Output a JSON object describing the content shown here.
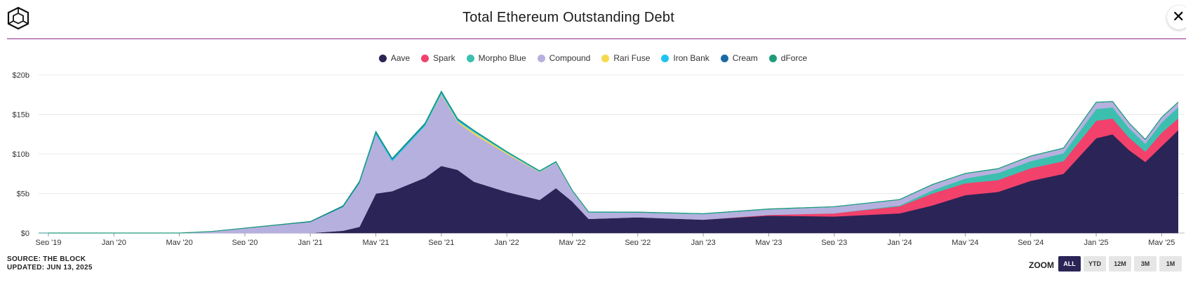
{
  "header": {
    "title": "Total Ethereum Outstanding Debt",
    "logo_icon": "the-block-cube-logo",
    "close_icon": "close-icon",
    "close_label": "✕"
  },
  "legend": [
    {
      "name": "Aave",
      "color": "#2b2456"
    },
    {
      "name": "Spark",
      "color": "#f2416b"
    },
    {
      "name": "Morpho Blue",
      "color": "#3dbfb0"
    },
    {
      "name": "Compound",
      "color": "#b6b0df"
    },
    {
      "name": "Rari Fuse",
      "color": "#f5d94a"
    },
    {
      "name": "Iron Bank",
      "color": "#1fc4ef"
    },
    {
      "name": "Cream",
      "color": "#1b6aa6"
    },
    {
      "name": "dForce",
      "color": "#1f9a7a"
    }
  ],
  "footer": {
    "source": "SOURCE: THE BLOCK",
    "updated": "UPDATED: JUN 13, 2025"
  },
  "zoom": {
    "label": "ZOOM",
    "buttons": [
      "ALL",
      "YTD",
      "12M",
      "3M",
      "1M"
    ],
    "active": "ALL"
  },
  "chart_data": {
    "type": "area",
    "stacked": true,
    "title": "Total Ethereum Outstanding Debt",
    "x_axis": {
      "type": "date",
      "range": [
        "2019-08",
        "2025-06"
      ],
      "ticks": [
        "Sep '19",
        "Jan '20",
        "May '20",
        "Sep '20",
        "Jan '21",
        "May '21",
        "Sep '21",
        "Jan '22",
        "May '22",
        "Sep '22",
        "Jan '23",
        "May '23",
        "Sep '23",
        "Jan '24",
        "May '24",
        "Sep '24",
        "Jan '25",
        "May '25"
      ]
    },
    "y_axis": {
      "unit": "USD",
      "range": [
        0,
        20
      ],
      "ticks": [
        "$0",
        "$5b",
        "$10b",
        "$15b",
        "$20b"
      ],
      "grid": true
    },
    "legend_position": "top-center",
    "x": [
      "2019-09",
      "2020-01",
      "2020-05",
      "2020-07",
      "2020-09",
      "2021-01",
      "2021-03",
      "2021-04",
      "2021-05",
      "2021-06",
      "2021-08",
      "2021-09",
      "2021-10",
      "2021-11",
      "2022-01",
      "2022-03",
      "2022-04",
      "2022-05",
      "2022-06",
      "2022-09",
      "2023-01",
      "2023-05",
      "2023-09",
      "2024-01",
      "2024-03",
      "2024-05",
      "2024-07",
      "2024-09",
      "2024-11",
      "2025-01",
      "2025-02",
      "2025-03",
      "2025-04",
      "2025-05",
      "2025-06"
    ],
    "series": [
      {
        "name": "Aave",
        "values": [
          0,
          0,
          0,
          0,
          0,
          0,
          0.3,
          0.8,
          5.0,
          5.3,
          7.0,
          8.5,
          8.0,
          6.5,
          5.2,
          4.2,
          5.7,
          4.0,
          1.8,
          2.0,
          1.7,
          2.2,
          2.1,
          2.5,
          3.5,
          4.8,
          5.2,
          6.6,
          7.5,
          12.0,
          12.5,
          10.5,
          9.0,
          11.0,
          13.0
        ]
      },
      {
        "name": "Spark",
        "values": [
          0,
          0,
          0,
          0,
          0,
          0,
          0,
          0,
          0,
          0,
          0,
          0,
          0,
          0,
          0,
          0,
          0,
          0,
          0,
          0,
          0,
          0.1,
          0.4,
          0.9,
          1.5,
          1.5,
          1.5,
          1.6,
          1.6,
          2.2,
          2.0,
          1.6,
          1.3,
          1.7,
          1.5
        ]
      },
      {
        "name": "Morpho Blue",
        "values": [
          0,
          0,
          0,
          0,
          0,
          0,
          0,
          0,
          0,
          0,
          0,
          0,
          0,
          0,
          0,
          0,
          0,
          0,
          0,
          0,
          0,
          0,
          0,
          0.1,
          0.4,
          0.6,
          0.9,
          0.9,
          1.0,
          1.5,
          1.4,
          1.2,
          1.0,
          1.3,
          1.4
        ]
      },
      {
        "name": "Compound",
        "values": [
          0,
          0,
          0,
          0.2,
          0.6,
          1.4,
          3.0,
          5.5,
          7.5,
          3.8,
          6.5,
          9.0,
          6.0,
          6.0,
          4.8,
          3.5,
          3.2,
          1.3,
          0.8,
          0.6,
          0.7,
          0.7,
          0.8,
          0.7,
          0.7,
          0.6,
          0.5,
          0.6,
          0.6,
          0.8,
          0.7,
          0.6,
          0.5,
          0.6,
          0.6
        ]
      },
      {
        "name": "Rari Fuse",
        "values": [
          0,
          0,
          0,
          0,
          0,
          0,
          0,
          0,
          0,
          0,
          0.05,
          0.1,
          0.15,
          0.25,
          0.15,
          0.05,
          0.03,
          0.02,
          0,
          0,
          0,
          0,
          0,
          0,
          0,
          0,
          0,
          0,
          0,
          0,
          0,
          0,
          0,
          0,
          0
        ]
      },
      {
        "name": "Iron Bank",
        "values": [
          0,
          0,
          0,
          0,
          0,
          0,
          0.05,
          0.1,
          0.2,
          0.2,
          0.2,
          0.2,
          0.2,
          0.15,
          0.1,
          0.08,
          0.07,
          0.05,
          0.04,
          0.03,
          0.03,
          0.02,
          0.02,
          0.02,
          0.02,
          0.02,
          0.02,
          0.02,
          0.02,
          0.02,
          0.02,
          0.02,
          0.02,
          0.02,
          0.02
        ]
      },
      {
        "name": "Cream",
        "values": [
          0,
          0,
          0,
          0,
          0.02,
          0.05,
          0.08,
          0.1,
          0.12,
          0.1,
          0.1,
          0.1,
          0.08,
          0.05,
          0.03,
          0.02,
          0.02,
          0.01,
          0.01,
          0.01,
          0.01,
          0.01,
          0.01,
          0.01,
          0.01,
          0.01,
          0.01,
          0.01,
          0.01,
          0.01,
          0.01,
          0.01,
          0.01,
          0.01,
          0.01
        ]
      },
      {
        "name": "dForce",
        "values": [
          0,
          0,
          0,
          0,
          0,
          0.01,
          0.02,
          0.03,
          0.03,
          0.03,
          0.03,
          0.03,
          0.02,
          0.02,
          0.02,
          0.01,
          0.01,
          0.01,
          0.01,
          0.01,
          0.01,
          0.01,
          0.01,
          0.01,
          0.01,
          0.01,
          0.01,
          0.01,
          0.01,
          0.01,
          0.01,
          0.01,
          0.01,
          0.01,
          0.01
        ]
      }
    ]
  }
}
